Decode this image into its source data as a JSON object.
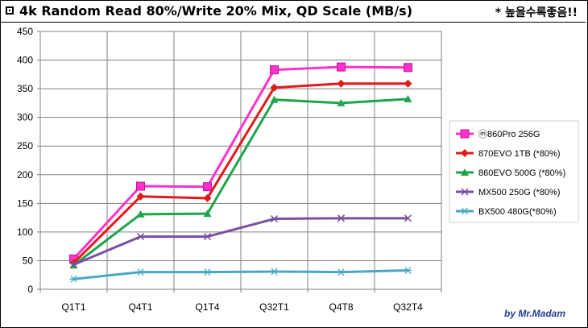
{
  "header": {
    "title": "4k Random Read 80%/Write 20% Mix, QD Scale (MB/s)",
    "note": "* 높을수록좋음!!"
  },
  "credit": "by Mr.Madam",
  "chart_data": {
    "type": "line",
    "title": "4k Random Read 80%/Write 20% Mix, QD Scale (MB/s)",
    "categories": [
      "Q1T1",
      "Q4T1",
      "Q1T4",
      "Q32T1",
      "Q4T8",
      "Q32T4"
    ],
    "ylim": [
      0,
      450
    ],
    "yticks": [
      0,
      50,
      100,
      150,
      200,
      250,
      300,
      350,
      400,
      450
    ],
    "grid": true,
    "legend_position": "right",
    "series": [
      {
        "name": "ⓜ860Pro 256G",
        "color": "#ff33cc",
        "marker": "square",
        "values": [
          53,
          180,
          179,
          383,
          388,
          387
        ]
      },
      {
        "name": "870EVO 1TB (*80%)",
        "color": "#e11b1b",
        "marker": "diamond",
        "values": [
          46,
          162,
          159,
          352,
          359,
          359
        ]
      },
      {
        "name": "860EVO 500G (*80%)",
        "color": "#1ea54b",
        "marker": "triangle",
        "values": [
          42,
          131,
          132,
          331,
          325,
          332
        ]
      },
      {
        "name": "MX500 250G (*80%)",
        "color": "#7b4fa0",
        "marker": "x",
        "values": [
          43,
          92,
          92,
          123,
          124,
          124
        ]
      },
      {
        "name": "BX500 480G(*80%)",
        "color": "#4aa7c8",
        "marker": "asterisk",
        "values": [
          18,
          30,
          30,
          31,
          30,
          33
        ]
      }
    ]
  }
}
